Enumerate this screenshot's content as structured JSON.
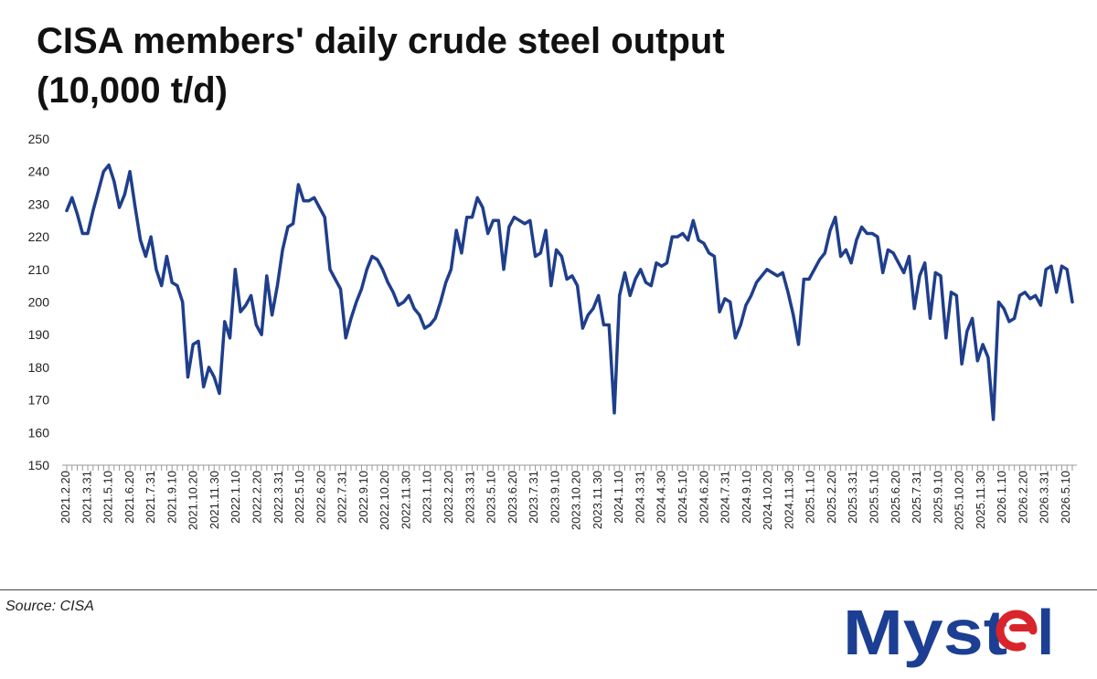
{
  "title_line1": "CISA members' daily crude steel output",
  "title_line2": "(10,000 t/d)",
  "source": "Source: CISA",
  "brand": "Mysteel",
  "colors": {
    "line": "#1f3e8c",
    "logo_blue": "#1c3f93",
    "logo_red": "#d8252b"
  },
  "chart_data": {
    "type": "line",
    "title": "CISA members' daily crude steel output (10,000 t/d)",
    "ylim": [
      150,
      250
    ],
    "yticks": [
      150,
      160,
      170,
      180,
      190,
      200,
      210,
      220,
      230,
      240,
      250
    ],
    "xtick_labels": [
      "2021.2.20",
      "2021.3.31",
      "2021.5.10",
      "2021.6.20",
      "2021.7.31",
      "2021.9.10",
      "2021.10.20",
      "2021.11.30",
      "2022.1.10",
      "2022.2.20",
      "2022.3.31",
      "2022.5.10",
      "2022.6.20",
      "2022.7.31",
      "2022.9.10",
      "2022.10.20",
      "2022.11.30",
      "2023.1.10",
      "2023.2.20",
      "2023.3.31",
      "2023.5.10",
      "2023.6.20",
      "2023.7.31",
      "2023.9.10",
      "2023.10.20",
      "2023.11.30",
      "2024.1.10",
      "2024.3.31",
      "2024.4.30",
      "2024.5.10",
      "2024.6.20",
      "2024.7.31",
      "2024.9.10",
      "2024.10.20",
      "2024.11.30",
      "2025.1.10",
      "2025.2.20",
      "2025.3.31",
      "2025.5.10",
      "2025.6.20",
      "2025.7.31",
      "2025.9.10",
      "2025.10.20",
      "2025.11.30",
      "2026.1.10",
      "2026.2.20",
      "2026.3.31",
      "2026.5.10"
    ],
    "grid": false,
    "legend": "none",
    "series": [
      {
        "values": [
          228,
          232,
          227,
          221,
          221,
          228,
          234,
          240,
          242,
          237,
          229,
          233,
          240,
          229,
          219,
          214,
          220,
          210,
          205,
          214,
          206,
          205,
          200,
          177,
          187,
          188,
          174,
          180,
          177,
          172,
          194,
          189,
          210,
          197,
          199,
          202,
          193,
          190,
          208,
          196,
          205,
          216,
          223,
          224,
          236,
          231,
          231,
          232,
          229,
          226,
          210,
          207,
          204,
          189,
          195,
          200,
          204,
          210,
          214,
          213,
          210,
          206,
          203,
          199,
          200,
          202,
          198,
          196,
          192,
          193,
          195,
          200,
          206,
          210,
          222,
          215,
          226,
          226,
          232,
          229,
          221,
          225,
          225,
          210,
          223,
          226,
          225,
          224,
          225,
          214,
          215,
          222,
          205,
          216,
          214,
          207,
          208,
          205,
          192,
          196,
          198,
          202,
          193,
          193,
          166,
          202,
          209,
          202,
          207,
          210,
          206,
          205,
          212,
          211,
          212,
          220,
          220,
          221,
          219,
          225,
          219,
          218,
          215,
          214,
          197,
          201,
          200,
          189,
          193,
          199,
          202,
          206,
          208,
          210,
          209,
          208,
          209,
          203,
          196,
          187,
          207,
          207,
          210,
          213,
          215,
          222,
          226,
          214,
          216,
          212,
          219,
          223,
          221,
          221,
          220,
          209,
          216,
          215,
          212,
          209,
          214,
          198,
          208,
          212,
          195,
          209,
          208,
          189,
          203,
          202,
          181,
          191,
          195,
          182,
          187,
          183,
          164,
          200,
          198,
          194,
          195,
          202,
          203,
          201,
          202,
          199,
          210,
          211,
          203,
          211,
          210,
          200
        ]
      }
    ]
  }
}
